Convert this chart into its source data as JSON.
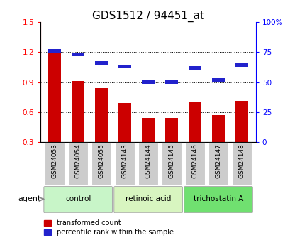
{
  "title": "GDS1512 / 94451_at",
  "categories": [
    "GSM24053",
    "GSM24054",
    "GSM24055",
    "GSM24143",
    "GSM24144",
    "GSM24145",
    "GSM24146",
    "GSM24147",
    "GSM24148"
  ],
  "transformed_count": [
    1.21,
    0.91,
    0.84,
    0.69,
    0.54,
    0.54,
    0.7,
    0.57,
    0.71
  ],
  "percentile_rank_raw": [
    0.76,
    0.73,
    0.66,
    0.63,
    0.5,
    0.5,
    0.62,
    0.52,
    0.64
  ],
  "bar_bottom": 0.3,
  "ylim_left": [
    0.3,
    1.5
  ],
  "ylim_right": [
    0.0,
    1.0
  ],
  "yticks_left": [
    0.3,
    0.6,
    0.9,
    1.2,
    1.5
  ],
  "yticks_right": [
    0.0,
    0.25,
    0.5,
    0.75,
    1.0
  ],
  "yticklabels_right": [
    "0",
    "25",
    "50",
    "75",
    "100%"
  ],
  "yticklabels_left": [
    "0.3",
    "0.6",
    "0.9",
    "1.2",
    "1.5"
  ],
  "groups": [
    {
      "label": "control",
      "indices": [
        0,
        1,
        2
      ],
      "color": "#c8f5c8"
    },
    {
      "label": "retinoic acid",
      "indices": [
        3,
        4,
        5
      ],
      "color": "#d8f5c0"
    },
    {
      "label": "trichostatin A",
      "indices": [
        6,
        7,
        8
      ],
      "color": "#70e070"
    }
  ],
  "bar_color_red": "#cc0000",
  "bar_color_blue": "#2222cc",
  "bar_width": 0.55,
  "agent_label": "agent",
  "legend_red": "transformed count",
  "legend_blue": "percentile rank within the sample",
  "title_fontsize": 11,
  "tick_label_fontsize": 7.5,
  "background_plot": "#ffffff",
  "background_xtick": "#cccccc",
  "grid_yticks": [
    0.6,
    0.9,
    1.2
  ]
}
